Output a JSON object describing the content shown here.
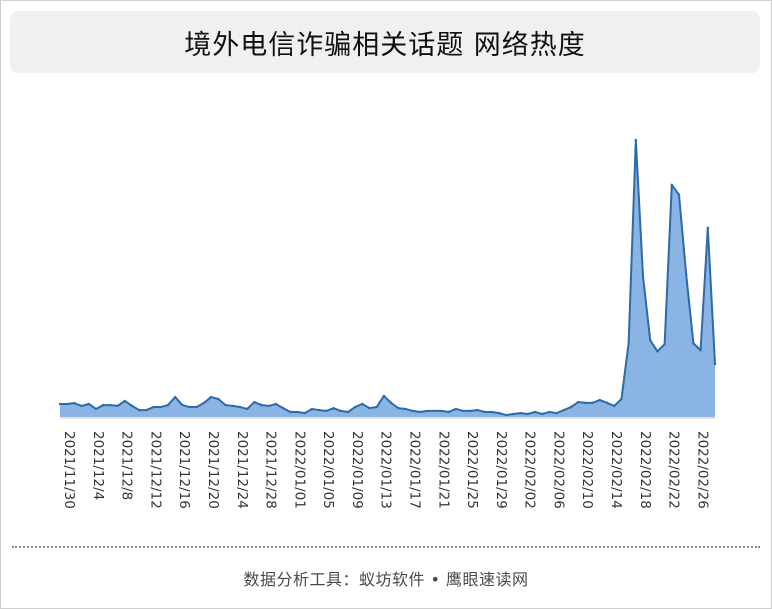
{
  "title": "境外电信诈骗相关话题 网络热度",
  "footer": "数据分析工具：蚁坊软件 • 鹰眼速读网",
  "colors": {
    "area_fill": "#8ab4e3",
    "area_line": "#2e6aa8",
    "axis": "#d9d9d9"
  },
  "chart_data": {
    "type": "area",
    "title": "境外电信诈骗相关话题 网络热度",
    "xlabel": "",
    "ylabel": "",
    "grid": false,
    "legend": "none",
    "tick_labels": [
      "2021/11/30",
      "2021/12/4",
      "2021/12/8",
      "2021/12/12",
      "2021/12/16",
      "2021/12/20",
      "2021/12/24",
      "2021/12/28",
      "2022/01/01",
      "2022/01/05",
      "2022/01/09",
      "2022/01/13",
      "2022/01/17",
      "2022/01/21",
      "2022/01/25",
      "2022/01/29",
      "2022/02/02",
      "2022/02/06",
      "2022/02/10",
      "2022/02/14",
      "2022/02/18",
      "2022/02/22",
      "2022/02/26"
    ],
    "start_date": "2021/11/30",
    "end_date": "2022/02/28",
    "ylim": [
      0,
      100
    ],
    "values": [
      4.7,
      4.7,
      5.0,
      4.0,
      4.7,
      2.9,
      4.3,
      4.3,
      4.0,
      5.8,
      4.0,
      2.5,
      2.5,
      3.6,
      3.6,
      4.3,
      7.2,
      4.3,
      3.6,
      3.6,
      5.1,
      7.2,
      6.5,
      4.3,
      4.0,
      3.6,
      2.9,
      5.4,
      4.3,
      4.0,
      4.7,
      3.2,
      1.8,
      1.8,
      1.4,
      2.9,
      2.5,
      2.2,
      3.2,
      2.2,
      1.8,
      3.6,
      4.7,
      3.2,
      3.6,
      7.6,
      5.1,
      3.2,
      2.9,
      2.2,
      1.8,
      2.2,
      2.2,
      2.2,
      1.8,
      2.9,
      2.2,
      2.2,
      2.5,
      1.8,
      1.8,
      1.4,
      0.7,
      1.1,
      1.4,
      1.1,
      1.8,
      1.1,
      1.8,
      1.4,
      2.5,
      3.6,
      5.4,
      5.1,
      5.1,
      6.1,
      5.1,
      4.0,
      6.5,
      26.6,
      100.0,
      50.7,
      27.7,
      23.7,
      26.3,
      83.8,
      80.2,
      51.4,
      26.6,
      24.1,
      68.3,
      19.1
    ]
  }
}
